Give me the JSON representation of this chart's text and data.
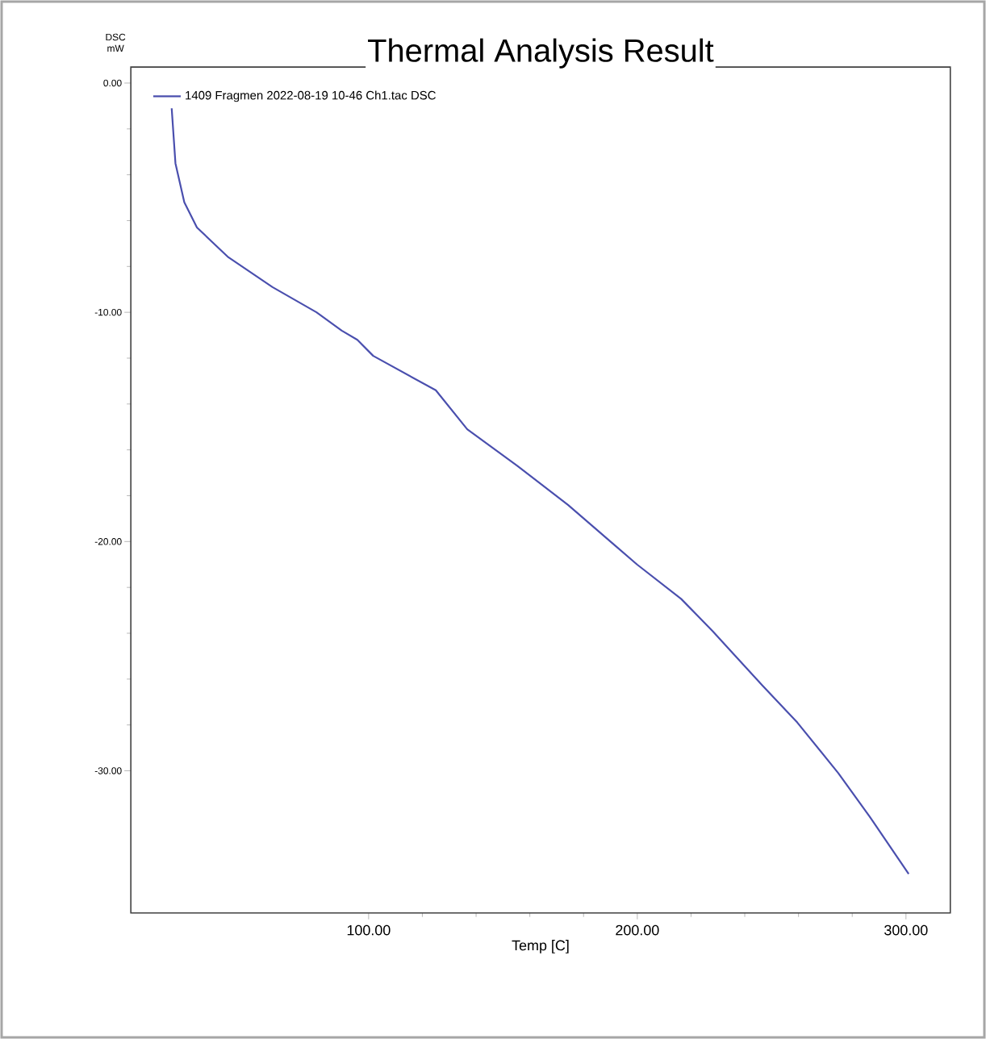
{
  "chart_data": {
    "type": "line",
    "title": "Thermal Analysis Result",
    "xlabel": "Temp  [C]",
    "ylabel": "DSC mW",
    "xlim": [
      11.5,
      316.5
    ],
    "ylim": [
      -36.2,
      0.7
    ],
    "xticks": [
      {
        "value": 100,
        "label": "100.00"
      },
      {
        "value": 200,
        "label": "200.00"
      },
      {
        "value": 300,
        "label": "300.00"
      }
    ],
    "yticks": [
      {
        "value": 0,
        "label": "0.00"
      },
      {
        "value": -10,
        "label": "-10.00"
      },
      {
        "value": -20,
        "label": "-20.00"
      },
      {
        "value": -30,
        "label": "-30.00"
      }
    ],
    "legend": "top left",
    "grid": false,
    "marker": "none",
    "line_style": "solid",
    "series": [
      {
        "name": "1409 Fragmen 2022-08-19 10-46 Ch1.tac  DSC",
        "color": "#4a4fae",
        "x": [
          26.7,
          28.1,
          31.4,
          36.1,
          47.8,
          64.2,
          80.6,
          90.0,
          95.8,
          101.7,
          125.0,
          136.7,
          155.4,
          174.2,
          199.9,
          216.3,
          228.0,
          235.0,
          246.7,
          259.6,
          274.8,
          286.5,
          301.0
        ],
        "values": [
          -1.1,
          -3.5,
          -5.2,
          -6.3,
          -7.6,
          -8.9,
          -10.0,
          -10.8,
          -11.2,
          -11.9,
          -13.4,
          -15.1,
          -16.7,
          -18.4,
          -21.0,
          -22.5,
          -23.9,
          -24.8,
          -26.3,
          -27.9,
          -30.1,
          -32.0,
          -34.5
        ]
      }
    ]
  }
}
